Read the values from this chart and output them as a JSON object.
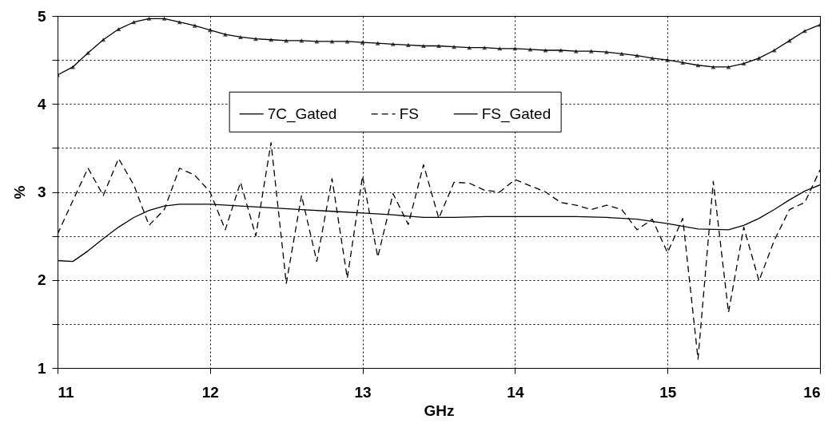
{
  "chart_data": {
    "type": "line",
    "xlabel": "GHz",
    "ylabel": "%",
    "xlim": [
      11,
      16
    ],
    "ylim": [
      1,
      5
    ],
    "xticks": [
      11,
      12,
      13,
      14,
      15,
      16
    ],
    "yticks": [
      1,
      {
        "value": 1.5,
        "label": null
      },
      2,
      {
        "value": 2.5,
        "label": null
      },
      3,
      {
        "value": 3.5,
        "label": null
      },
      4,
      {
        "value": 4.5,
        "label": null
      },
      5
    ],
    "grid": true,
    "legend": "top",
    "series": [
      {
        "name": "7C_Gated",
        "color": "#000000",
        "line_style": "solid",
        "marker": "none",
        "x": [
          11.0,
          11.1,
          11.2,
          11.3,
          11.4,
          11.5,
          11.6,
          11.7,
          11.8,
          11.9,
          12.0,
          12.2,
          12.4,
          12.6,
          12.8,
          13.0,
          13.2,
          13.4,
          13.6,
          13.8,
          14.0,
          14.2,
          14.4,
          14.6,
          14.8,
          15.0,
          15.2,
          15.4,
          15.5,
          15.6,
          15.7,
          15.8,
          15.9,
          16.0
        ],
        "values": [
          2.22,
          2.21,
          2.33,
          2.47,
          2.6,
          2.71,
          2.79,
          2.84,
          2.86,
          2.86,
          2.86,
          2.84,
          2.82,
          2.8,
          2.78,
          2.76,
          2.74,
          2.71,
          2.71,
          2.72,
          2.72,
          2.72,
          2.72,
          2.71,
          2.69,
          2.64,
          2.58,
          2.57,
          2.62,
          2.7,
          2.8,
          2.91,
          3.01,
          3.08
        ]
      },
      {
        "name": "FS",
        "color": "#000000",
        "line_style": "dashed",
        "marker": "none",
        "x": [
          11.0,
          11.1,
          11.2,
          11.3,
          11.4,
          11.5,
          11.6,
          11.7,
          11.8,
          11.9,
          12.0,
          12.1,
          12.2,
          12.3,
          12.4,
          12.5,
          12.6,
          12.7,
          12.8,
          12.9,
          13.0,
          13.1,
          13.2,
          13.3,
          13.4,
          13.5,
          13.6,
          13.7,
          13.8,
          13.9,
          14.0,
          14.1,
          14.2,
          14.3,
          14.4,
          14.5,
          14.6,
          14.7,
          14.8,
          14.9,
          15.0,
          15.1,
          15.2,
          15.3,
          15.4,
          15.5,
          15.6,
          15.7,
          15.8,
          15.9,
          16.0
        ],
        "values": [
          2.52,
          2.9,
          3.27,
          2.96,
          3.38,
          3.08,
          2.62,
          2.8,
          3.27,
          3.19,
          3.0,
          2.57,
          3.11,
          2.5,
          3.56,
          1.96,
          2.96,
          2.21,
          3.15,
          2.02,
          3.18,
          2.26,
          2.98,
          2.63,
          3.31,
          2.7,
          3.11,
          3.1,
          3.02,
          3.0,
          3.14,
          3.07,
          3.0,
          2.88,
          2.85,
          2.8,
          2.85,
          2.8,
          2.57,
          2.69,
          2.31,
          2.7,
          1.1,
          3.12,
          1.63,
          2.6,
          1.99,
          2.45,
          2.8,
          2.88,
          3.25
        ]
      },
      {
        "name": "FS_Gated",
        "color": "#000000",
        "line_style": "solid",
        "marker": "triangle",
        "x": [
          11.0,
          11.1,
          11.2,
          11.3,
          11.4,
          11.5,
          11.6,
          11.7,
          11.8,
          11.9,
          12.0,
          12.1,
          12.2,
          12.3,
          12.4,
          12.5,
          12.6,
          12.7,
          12.8,
          12.9,
          13.0,
          13.1,
          13.2,
          13.3,
          13.4,
          13.5,
          13.6,
          13.7,
          13.8,
          13.9,
          14.0,
          14.1,
          14.2,
          14.3,
          14.4,
          14.5,
          14.6,
          14.7,
          14.8,
          14.9,
          15.0,
          15.1,
          15.2,
          15.3,
          15.4,
          15.5,
          15.6,
          15.7,
          15.8,
          15.9,
          16.0
        ],
        "values": [
          4.33,
          4.42,
          4.58,
          4.73,
          4.85,
          4.93,
          4.97,
          4.97,
          4.93,
          4.89,
          4.84,
          4.79,
          4.76,
          4.74,
          4.73,
          4.72,
          4.72,
          4.71,
          4.71,
          4.71,
          4.7,
          4.69,
          4.68,
          4.67,
          4.66,
          4.66,
          4.65,
          4.64,
          4.64,
          4.63,
          4.63,
          4.62,
          4.61,
          4.61,
          4.6,
          4.6,
          4.59,
          4.57,
          4.55,
          4.52,
          4.5,
          4.47,
          4.44,
          4.42,
          4.42,
          4.46,
          4.52,
          4.61,
          4.72,
          4.83,
          4.9
        ]
      }
    ]
  }
}
